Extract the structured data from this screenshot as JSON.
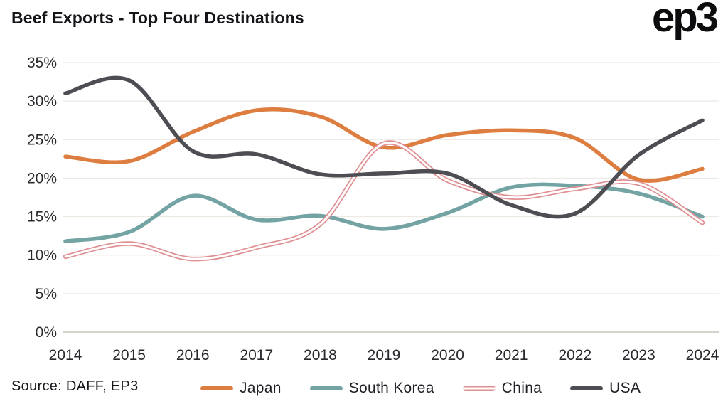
{
  "header": {
    "title": "Beef Exports - Top Four Destinations",
    "logo": "ep3"
  },
  "source": "Source: DAFF, EP3",
  "chart_data": {
    "type": "line",
    "title": "Beef Exports - Top Four Destinations",
    "x": [
      2014,
      2015,
      2016,
      2017,
      2018,
      2019,
      2020,
      2021,
      2022,
      2023,
      2024
    ],
    "series": [
      {
        "name": "Japan",
        "color": "#dd7d3f",
        "style": "solid",
        "values": [
          22.8,
          22.2,
          26.0,
          28.8,
          28.0,
          24.0,
          25.6,
          26.2,
          25.2,
          19.8,
          21.2
        ]
      },
      {
        "name": "South Korea",
        "color": "#74a3a3",
        "style": "solid",
        "values": [
          11.8,
          13.0,
          17.7,
          14.6,
          15.1,
          13.4,
          15.5,
          18.8,
          19.0,
          18.0,
          15.0
        ]
      },
      {
        "name": "China",
        "color": "#df9093",
        "style": "outline",
        "values": [
          9.8,
          11.5,
          9.5,
          11.0,
          14.0,
          24.5,
          19.7,
          17.5,
          18.6,
          19.3,
          14.2
        ]
      },
      {
        "name": "USA",
        "color": "#4d4d54",
        "style": "solid",
        "values": [
          31.0,
          32.7,
          23.5,
          23.1,
          20.5,
          20.6,
          20.6,
          16.5,
          15.4,
          23.0,
          27.5
        ]
      }
    ],
    "ylim": [
      0,
      35
    ],
    "ytick_step": 5,
    "ytick_suffix": "%",
    "grid": "horizontal",
    "legend_position": "bottom"
  }
}
